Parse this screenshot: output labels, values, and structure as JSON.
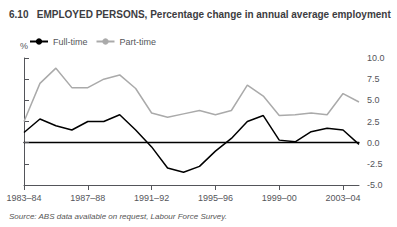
{
  "chart_data": {
    "type": "line",
    "title": "6.10   EMPLOYED PERSONS, Percentage change in annual average employment",
    "source": "Source: ABS data available on request, Labour Force Survey.",
    "ylabel": "%",
    "x": [
      0,
      1,
      2,
      3,
      4,
      5,
      6,
      7,
      8,
      9,
      10,
      11,
      12,
      13,
      14,
      15,
      16,
      17,
      18,
      19,
      20,
      21
    ],
    "series": [
      {
        "name": "Full-time",
        "color": "#000000",
        "values": [
          1.2,
          2.8,
          2.0,
          1.5,
          2.5,
          2.5,
          3.3,
          1.5,
          -0.5,
          -3.0,
          -3.5,
          -2.8,
          -1.0,
          0.5,
          2.5,
          3.2,
          0.3,
          0.1,
          1.3,
          1.7,
          1.5,
          -0.2
        ]
      },
      {
        "name": "Part-time",
        "color": "#aaaaaa",
        "values": [
          2.5,
          7.0,
          8.8,
          6.5,
          6.5,
          7.5,
          8.0,
          6.4,
          3.5,
          3.0,
          3.4,
          3.8,
          3.3,
          3.8,
          6.8,
          5.5,
          3.2,
          3.3,
          3.5,
          3.3,
          5.8,
          4.8
        ]
      }
    ],
    "xlim": [
      0,
      21
    ],
    "xticks": [
      {
        "value": 0,
        "label": "1983–84"
      },
      {
        "value": 4,
        "label": "1987–88"
      },
      {
        "value": 8,
        "label": "1991–92"
      },
      {
        "value": 12,
        "label": "1995–96"
      },
      {
        "value": 16,
        "label": "1999–00"
      },
      {
        "value": 20,
        "label": "2003–04"
      }
    ],
    "ylim": [
      -5.0,
      10.0
    ],
    "yticks": [
      {
        "value": -5.0,
        "label": "-5.0"
      },
      -2.5,
      {
        "value": 0.0,
        "label": "0.0"
      },
      2.5,
      {
        "value": 5.0,
        "label": "5.0"
      },
      7.5,
      {
        "value": 10.0,
        "label": "10.0"
      }
    ],
    "grid": false,
    "legend": "upper left"
  }
}
